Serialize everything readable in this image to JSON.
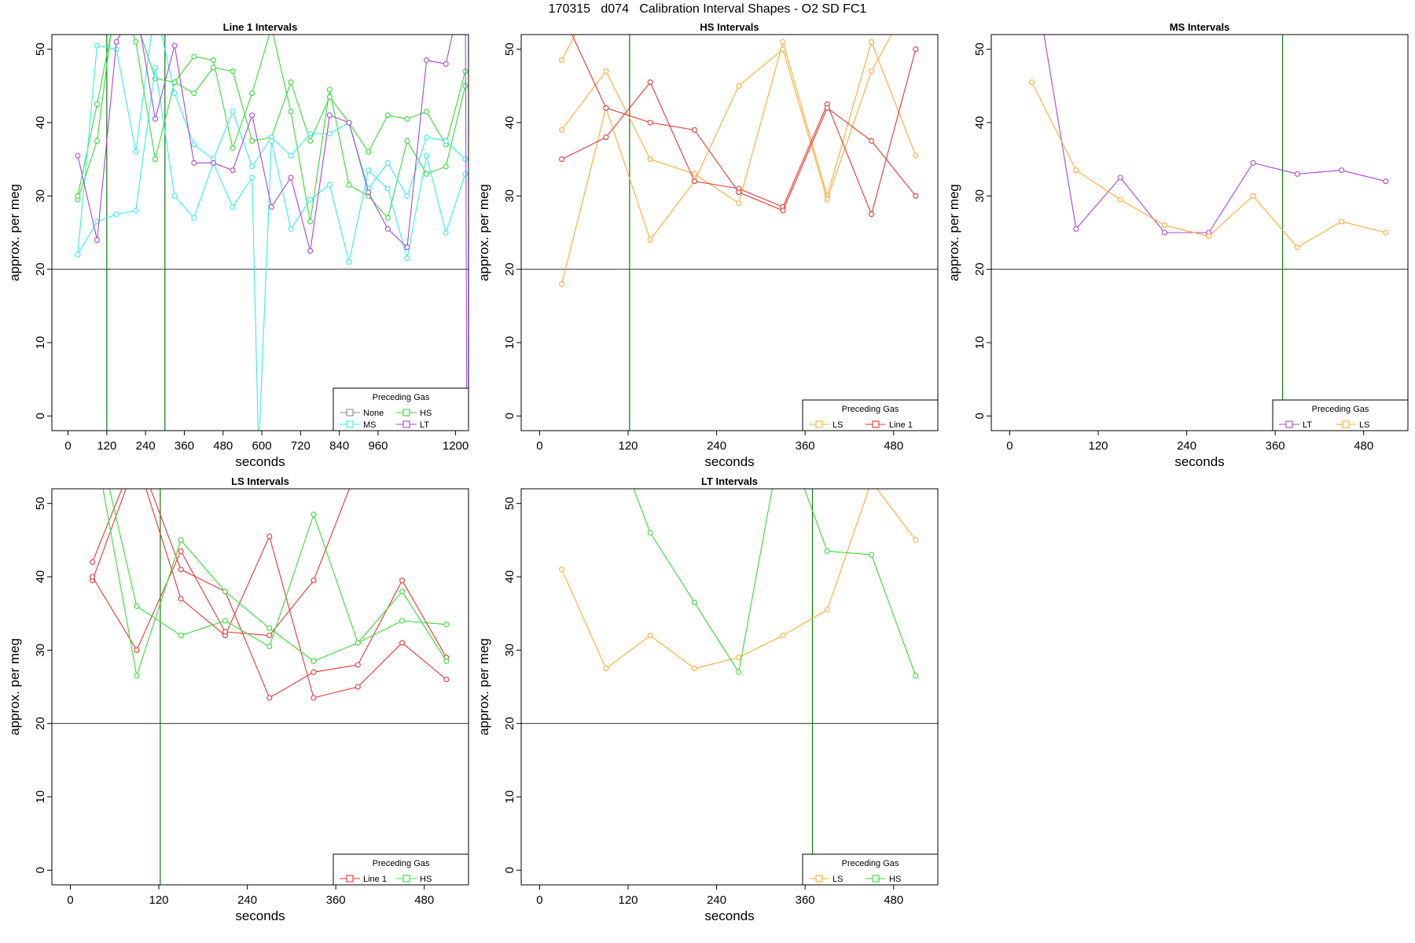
{
  "title": "170315   d074   Calibration Interval Shapes - O2 SD FC1",
  "colors": {
    "None": "#888888",
    "HS": "#33dd33",
    "MS": "#33eeee",
    "LT": "#aa44dd",
    "LS": "#ffaa33",
    "Line 1": "#ee3333",
    "ref_line": "#333333",
    "marker_line": "#117711"
  },
  "chart_data": [
    {
      "type": "line",
      "title": "Line 1 Intervals",
      "xlabel": "seconds",
      "ylabel": "approx. per meg",
      "xlim": [
        -50,
        1240
      ],
      "ylim": [
        -2,
        52
      ],
      "xticks": [
        0,
        120,
        240,
        360,
        480,
        600,
        720,
        840,
        960,
        1200
      ],
      "yticks": [
        0,
        10,
        20,
        30,
        40,
        50
      ],
      "hline": 20,
      "vlines": [
        120,
        300
      ],
      "legend": {
        "title": "Preceding Gas",
        "columns": 2,
        "entries": [
          "None",
          "HS",
          "MS",
          "LT"
        ]
      },
      "series": [
        {
          "gas": "HS",
          "x": [
            30,
            90,
            150,
            210,
            270,
            330,
            390,
            450,
            510,
            570,
            630,
            690,
            750,
            810,
            870,
            930,
            990,
            1050,
            1110,
            1170,
            1230
          ],
          "y": [
            29.5,
            37.5,
            58,
            51,
            35,
            45.5,
            49,
            48.5,
            36.5,
            44,
            53,
            41.5,
            26.5,
            44.5,
            31.5,
            30,
            27,
            37.5,
            33,
            34,
            45
          ]
        },
        {
          "gas": "HS",
          "x": [
            30,
            90,
            150,
            210,
            270,
            330,
            390,
            450,
            510,
            570,
            630,
            690,
            750,
            810,
            870,
            930,
            990,
            1050,
            1110,
            1170,
            1230
          ],
          "y": [
            30,
            42.5,
            56,
            54,
            46,
            45.5,
            44,
            47.5,
            47,
            37.5,
            38,
            45.5,
            37.5,
            43.5,
            40,
            36,
            41,
            40.5,
            41.5,
            37,
            47
          ]
        },
        {
          "gas": "MS",
          "x": [
            30,
            90,
            150,
            210,
            270,
            330,
            390,
            450,
            510,
            570,
            630,
            690,
            750,
            810,
            870,
            930,
            990,
            1050,
            1110,
            1170,
            1230
          ],
          "y": [
            22,
            50.5,
            50,
            36,
            56,
            44,
            37,
            35,
            41.5,
            34,
            38,
            35.5,
            38.5,
            38.5,
            40,
            31,
            34.5,
            30,
            38,
            37.5,
            35
          ]
        },
        {
          "gas": "MS",
          "x": [
            30,
            90,
            150,
            210,
            270,
            330,
            390,
            450,
            510,
            570,
            590,
            630,
            690,
            750,
            810,
            870,
            930,
            990,
            1050,
            1110,
            1170,
            1230
          ],
          "y": [
            22,
            26.5,
            27.5,
            28,
            47.5,
            30,
            27,
            34.5,
            28.5,
            32.5,
            -5,
            37.5,
            25.5,
            29.5,
            31.5,
            21,
            33.5,
            31,
            21.5,
            35.5,
            25,
            33
          ]
        },
        {
          "gas": "LT",
          "x": [
            30,
            90,
            150,
            210,
            270,
            330,
            390,
            450,
            510,
            570,
            630,
            690,
            750,
            810,
            870,
            930,
            990,
            1050,
            1110,
            1170,
            1230,
            1235
          ],
          "y": [
            35.5,
            24,
            51,
            56,
            40.5,
            50.5,
            34.5,
            34.5,
            33.5,
            41,
            28.5,
            32.5,
            22.5,
            41,
            40,
            30.5,
            25.5,
            23,
            48.5,
            48,
            60,
            -5
          ]
        }
      ]
    },
    {
      "type": "line",
      "title": "HS Intervals",
      "xlabel": "seconds",
      "ylabel": "approx. per meg",
      "xlim": [
        -25,
        540
      ],
      "ylim": [
        -2,
        52
      ],
      "xticks": [
        0,
        120,
        240,
        360,
        480
      ],
      "yticks": [
        0,
        10,
        20,
        30,
        40,
        50
      ],
      "hline": 20,
      "vlines": [
        122
      ],
      "legend": {
        "title": "Preceding Gas",
        "columns": 2,
        "entries": [
          "LS",
          "Line 1"
        ]
      },
      "series": [
        {
          "gas": "LS",
          "x": [
            30,
            90,
            150,
            210,
            270,
            330,
            390,
            450,
            510
          ],
          "y": [
            39,
            47,
            35,
            33,
            29,
            51,
            30,
            51,
            35.5
          ]
        },
        {
          "gas": "LS",
          "x": [
            30,
            90,
            150,
            210,
            270,
            330,
            390,
            450,
            510
          ],
          "y": [
            18,
            42,
            24,
            32,
            45,
            50,
            29.5,
            47,
            58
          ]
        },
        {
          "gas": "LS",
          "x": [
            30,
            90,
            150,
            210
          ],
          "y": [
            48.5,
            60,
            60,
            55
          ]
        },
        {
          "gas": "Line 1",
          "x": [
            30,
            90,
            150,
            210,
            270,
            330,
            390,
            450,
            510
          ],
          "y": [
            35,
            38,
            45.5,
            32,
            31,
            28.5,
            42.5,
            27.5,
            50
          ]
        },
        {
          "gas": "Line 1",
          "x": [
            30,
            90,
            150,
            210,
            270,
            330,
            390,
            450,
            510
          ],
          "y": [
            55,
            42,
            40,
            39,
            30.5,
            28,
            42,
            37.5,
            30
          ]
        }
      ]
    },
    {
      "type": "line",
      "title": "MS Intervals",
      "xlabel": "seconds",
      "ylabel": "approx. per meg",
      "xlim": [
        -25,
        540
      ],
      "ylim": [
        -2,
        52
      ],
      "xticks": [
        0,
        120,
        240,
        360,
        480
      ],
      "yticks": [
        0,
        10,
        20,
        30,
        40,
        50
      ],
      "hline": 20,
      "vlines": [
        370
      ],
      "legend": {
        "title": "Preceding Gas",
        "columns": 2,
        "entries": [
          "LT",
          "LS"
        ]
      },
      "series": [
        {
          "gas": "LT",
          "x": [
            30,
            90,
            150,
            210,
            270,
            330,
            390,
            450,
            510
          ],
          "y": [
            62,
            25.5,
            32.5,
            25,
            25,
            34.5,
            33,
            33.5,
            32
          ]
        },
        {
          "gas": "LS",
          "x": [
            30,
            90,
            150,
            210,
            270,
            330,
            390,
            450,
            510
          ],
          "y": [
            45.5,
            33.5,
            29.5,
            26,
            24.5,
            30,
            23,
            26.5,
            25
          ]
        }
      ]
    },
    {
      "type": "line",
      "title": "LS Intervals",
      "xlabel": "seconds",
      "ylabel": "approx. per meg",
      "xlim": [
        -25,
        540
      ],
      "ylim": [
        -2,
        52
      ],
      "xticks": [
        0,
        120,
        240,
        360,
        480
      ],
      "yticks": [
        0,
        10,
        20,
        30,
        40,
        50
      ],
      "hline": 20,
      "vlines": [
        122
      ],
      "legend": {
        "title": "Preceding Gas",
        "columns": 2,
        "entries": [
          "Line 1",
          "HS"
        ]
      },
      "series": [
        {
          "gas": "Line 1",
          "x": [
            30,
            90,
            150,
            210,
            270,
            330,
            390,
            450,
            510
          ],
          "y": [
            39.5,
            56,
            37,
            32,
            45.5,
            23.5,
            25,
            31,
            26
          ]
        },
        {
          "gas": "Line 1",
          "x": [
            30,
            90,
            150,
            210,
            270,
            330,
            390,
            450,
            510
          ],
          "y": [
            42,
            57,
            41,
            38,
            23.5,
            27,
            28,
            39.5,
            29
          ]
        },
        {
          "gas": "Line 1",
          "x": [
            30,
            90,
            150,
            210,
            270,
            330,
            390
          ],
          "y": [
            40,
            30,
            43.5,
            32.5,
            32,
            39.5,
            55
          ]
        },
        {
          "gas": "HS",
          "x": [
            30,
            90,
            150,
            210,
            270,
            330,
            390,
            450,
            510
          ],
          "y": [
            62,
            36,
            32,
            34,
            30.5,
            48.5,
            31,
            38,
            28.5
          ]
        },
        {
          "gas": "HS",
          "x": [
            30,
            90,
            150,
            210,
            270,
            330,
            390,
            450,
            510
          ],
          "y": [
            60,
            26.5,
            45,
            38,
            33,
            28.5,
            31,
            34,
            33.5
          ]
        }
      ]
    },
    {
      "type": "line",
      "title": "LT Intervals",
      "xlabel": "seconds",
      "ylabel": "approx. per meg",
      "xlim": [
        -25,
        540
      ],
      "ylim": [
        -2,
        52
      ],
      "xticks": [
        0,
        120,
        240,
        360,
        480
      ],
      "yticks": [
        0,
        10,
        20,
        30,
        40,
        50
      ],
      "hline": 20,
      "vlines": [
        370
      ],
      "legend": {
        "title": "Preceding Gas",
        "columns": 2,
        "entries": [
          "LS",
          "HS"
        ]
      },
      "series": [
        {
          "gas": "LS",
          "x": [
            30,
            90,
            150,
            210,
            270,
            330,
            390,
            450,
            510
          ],
          "y": [
            41,
            27.5,
            32,
            27.5,
            29,
            32,
            35.5,
            53,
            45
          ]
        },
        {
          "gas": "HS",
          "x": [
            90,
            150,
            210,
            270,
            330,
            390,
            450,
            510
          ],
          "y": [
            62,
            46,
            36.5,
            27,
            60,
            43.5,
            43,
            26.5
          ]
        }
      ]
    }
  ]
}
